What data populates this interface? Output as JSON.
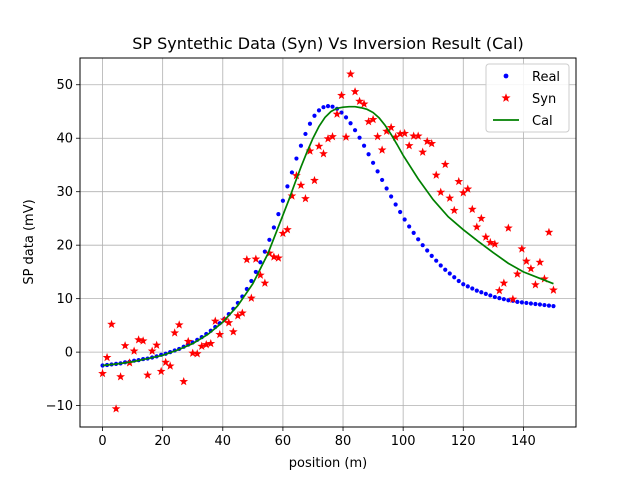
{
  "chart_data": {
    "type": "scatter",
    "title": "SP Syntethic Data (Syn) Vs Inversion Result (Cal)",
    "xlabel": "position (m)",
    "ylabel": "SP data (mV)",
    "xlim": [
      -7.5,
      157.5
    ],
    "ylim": [
      -14,
      55
    ],
    "xticks": [
      0,
      20,
      40,
      60,
      80,
      100,
      120,
      140
    ],
    "yticks": [
      -10,
      0,
      10,
      20,
      30,
      40,
      50
    ],
    "xtick_labels": [
      "0",
      "20",
      "40",
      "60",
      "80",
      "100",
      "120",
      "140"
    ],
    "ytick_labels": [
      "−10",
      "0",
      "10",
      "20",
      "30",
      "40",
      "50"
    ],
    "grid": true,
    "legend_position": "top-right",
    "series": [
      {
        "name": "Real",
        "marker": "dot",
        "color": "#0000ff",
        "x": [
          0,
          1.5,
          3,
          4.5,
          6,
          7.5,
          9,
          10.5,
          12,
          13.5,
          15,
          16.5,
          18,
          19.5,
          21,
          22.5,
          24,
          25.5,
          27,
          28.5,
          30,
          31.5,
          33,
          34.5,
          36,
          37.5,
          39,
          40.5,
          42,
          43.5,
          45,
          46.5,
          48,
          49.5,
          51,
          52.5,
          54,
          55.5,
          57,
          58.5,
          60,
          61.5,
          63,
          64.5,
          66,
          67.5,
          69,
          70.5,
          72,
          73.5,
          75,
          76.5,
          78,
          79.5,
          81,
          82.5,
          84,
          85.5,
          87,
          88.5,
          90,
          91.5,
          93,
          94.5,
          96,
          97.5,
          99,
          100.5,
          102,
          103.5,
          105,
          106.5,
          108,
          109.5,
          111,
          112.5,
          114,
          115.5,
          117,
          118.5,
          120,
          121.5,
          123,
          124.5,
          126,
          127.5,
          129,
          130.5,
          132,
          133.5,
          135,
          136.5,
          138,
          139.5,
          141,
          142.5,
          144,
          145.5,
          147,
          148.5,
          150
        ],
        "y": [
          -2.5,
          -2.4,
          -2.3,
          -2.2,
          -2.1,
          -1.9,
          -1.8,
          -1.6,
          -1.5,
          -1.3,
          -1.2,
          -1,
          -0.8,
          -0.5,
          -0.3,
          0,
          0.3,
          0.6,
          1,
          1.4,
          1.8,
          2.3,
          2.8,
          3.4,
          4,
          4.7,
          5.4,
          6.2,
          7.1,
          8.1,
          9.2,
          10.4,
          11.8,
          13.3,
          15,
          16.8,
          18.8,
          21,
          23.3,
          25.8,
          28.3,
          31,
          33.6,
          36.2,
          38.6,
          40.8,
          42.7,
          44.2,
          45.2,
          45.8,
          46,
          45.9,
          45.5,
          44.8,
          43.9,
          42.8,
          41.5,
          40.1,
          38.6,
          37,
          35.4,
          33.8,
          32.2,
          30.6,
          29.1,
          27.6,
          26.2,
          24.8,
          23.5,
          22.3,
          21.1,
          20,
          19,
          18,
          17.1,
          16.2,
          15.4,
          14.7,
          14,
          13.3,
          12.7,
          12.3,
          11.9,
          11.5,
          11.2,
          10.9,
          10.6,
          10.3,
          10.1,
          9.9,
          9.7,
          9.6,
          9.4,
          9.3,
          9.2,
          9.1,
          9,
          8.9,
          8.8,
          8.7,
          8.6
        ]
      },
      {
        "name": "Syn",
        "marker": "star",
        "color": "#ff0000",
        "x": [
          0,
          1.5,
          3,
          4.5,
          6,
          7.5,
          9,
          10.5,
          12,
          13.5,
          15,
          16.5,
          18,
          19.5,
          21,
          22.5,
          24,
          25.5,
          27,
          28.5,
          30,
          31.5,
          33,
          34.5,
          36,
          37.5,
          39,
          40.5,
          42,
          43.5,
          45,
          46.5,
          48,
          49.5,
          51,
          52.5,
          54,
          55.5,
          57,
          58.5,
          60,
          61.5,
          63,
          64.5,
          66,
          67.5,
          69,
          70.5,
          72,
          73.5,
          75,
          76.5,
          78,
          79.5,
          81,
          82.5,
          84,
          85.5,
          87,
          88.5,
          90,
          91.5,
          93,
          94.5,
          96,
          97.5,
          99,
          100.5,
          102,
          103.5,
          105,
          106.5,
          108,
          109.5,
          111,
          112.5,
          114,
          115.5,
          117,
          118.5,
          120,
          121.5,
          123,
          124.5,
          126,
          127.5,
          129,
          130.5,
          132,
          133.5,
          135,
          136.5,
          138,
          139.5,
          141,
          142.5,
          144,
          145.5,
          147,
          148.5,
          150
        ],
        "y": [
          -4,
          -1,
          5.2,
          -10.6,
          -4.6,
          1.2,
          -2,
          0.2,
          2.3,
          2.1,
          -4.3,
          0.2,
          1.3,
          -3.6,
          -1.9,
          -2.6,
          3.6,
          5.1,
          -5.5,
          2,
          -0.2,
          -0.3,
          1.1,
          1.4,
          1.6,
          5.8,
          3.3,
          6,
          5.5,
          3.8,
          6.8,
          7.3,
          17.3,
          10.1,
          17.4,
          14.4,
          12.9,
          18.5,
          17.8,
          17.6,
          22.2,
          22.9,
          29.2,
          33,
          31.2,
          28.7,
          37.6,
          32.1,
          38.5,
          37.1,
          39.9,
          40.3,
          44.5,
          48,
          40.2,
          52,
          48.7,
          46.9,
          46.4,
          43.1,
          43.5,
          40.3,
          37.8,
          41.3,
          42,
          40.2,
          40.8,
          40.9,
          38.6,
          40.4,
          40.4,
          37.4,
          39.4,
          39,
          33.1,
          29.9,
          35.1,
          28.8,
          26.5,
          31.9,
          29.8,
          30.5,
          26.7,
          23.4,
          25,
          21.5,
          20.5,
          20.2,
          11.5,
          12.9,
          23.2,
          9.9,
          14.6,
          19.3,
          17,
          15.6,
          12.6,
          16.8,
          13.7,
          22.4,
          11.6
        ]
      },
      {
        "name": "Cal",
        "marker": "line",
        "color": "#008000",
        "x": [
          0,
          5,
          10,
          15,
          20,
          25,
          30,
          35,
          40,
          45,
          50,
          55,
          60,
          62,
          64,
          66,
          68,
          70,
          72,
          74,
          76,
          78,
          80,
          82,
          84,
          86,
          88,
          90,
          92,
          94,
          96,
          98,
          100,
          105,
          110,
          115,
          120,
          125,
          130,
          135,
          140,
          145,
          150
        ],
        "y": [
          -2.5,
          -2.2,
          -1.8,
          -1.2,
          -0.6,
          0.4,
          1.6,
          3.3,
          5.6,
          8.7,
          12.8,
          18.4,
          25.6,
          28.5,
          31.6,
          34.6,
          37.4,
          40,
          42.2,
          43.9,
          45,
          45.6,
          45.8,
          45.9,
          45.9,
          45.7,
          45.4,
          44.8,
          43.8,
          42.4,
          40.7,
          38.8,
          36.8,
          32.4,
          28.5,
          25.3,
          22.9,
          20.7,
          18.6,
          16.6,
          15,
          13.9,
          12.8
        ]
      }
    ]
  }
}
